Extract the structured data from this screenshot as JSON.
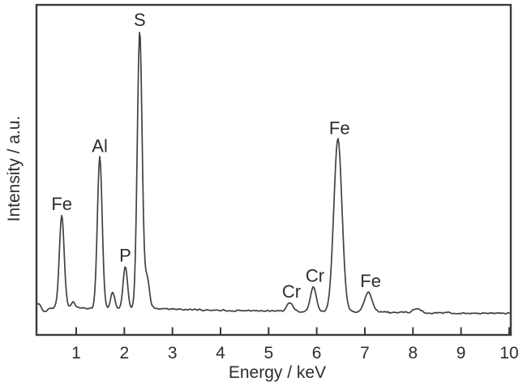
{
  "chart_data": {
    "type": "line",
    "title": "",
    "xlabel": "Energy / keV",
    "ylabel": "Intensity / a.u.",
    "x_ticks": [
      1,
      2,
      3,
      4,
      5,
      6,
      7,
      8,
      9,
      10
    ],
    "xlim": [
      0.17,
      10.05
    ],
    "ylim": [
      -0.02,
      1.18
    ],
    "grid": false,
    "legend": false,
    "line_color": "#3b453f",
    "axis_color": "#3a3a3a",
    "text_color": "#2d2d2d",
    "background_color": "#ffffff",
    "peaks": [
      {
        "label": "",
        "energy_keV": 0.22,
        "intensity_au": 0.018,
        "sigma_keV": 0.035
      },
      {
        "label": "",
        "energy_keV": 0.35,
        "intensity_au": -0.013,
        "sigma_keV": 0.05
      },
      {
        "label": "Fe",
        "energy_keV": 0.7,
        "intensity_au": 0.336,
        "sigma_keV": 0.05
      },
      {
        "label": "",
        "energy_keV": 0.94,
        "intensity_au": 0.023,
        "sigma_keV": 0.04
      },
      {
        "label": "Al",
        "energy_keV": 1.49,
        "intensity_au": 0.545,
        "sigma_keV": 0.05
      },
      {
        "label": "",
        "energy_keV": 1.76,
        "intensity_au": 0.058,
        "sigma_keV": 0.04
      },
      {
        "label": "P",
        "energy_keV": 2.02,
        "intensity_au": 0.151,
        "sigma_keV": 0.045
      },
      {
        "label": "S",
        "energy_keV": 2.32,
        "intensity_au": 1.0,
        "sigma_keV": 0.05
      },
      {
        "label": "",
        "energy_keV": 2.47,
        "intensity_au": 0.108,
        "sigma_keV": 0.05
      },
      {
        "label": "Cr",
        "energy_keV": 5.44,
        "intensity_au": 0.031,
        "sigma_keV": 0.06,
        "label_dx": 2
      },
      {
        "label": "Cr",
        "energy_keV": 5.93,
        "intensity_au": 0.089,
        "sigma_keV": 0.06,
        "label_dx": 2
      },
      {
        "label": "Fe",
        "energy_keV": 6.44,
        "intensity_au": 0.623,
        "sigma_keV": 0.085,
        "label_dx": 2
      },
      {
        "label": "Fe",
        "energy_keV": 7.07,
        "intensity_au": 0.072,
        "sigma_keV": 0.08,
        "label_dx": 3
      },
      {
        "label": "",
        "energy_keV": 8.08,
        "intensity_au": 0.012,
        "sigma_keV": 0.08
      }
    ],
    "baseline_au": [
      [
        0.17,
        0.0205
      ],
      [
        2.45,
        0.0205
      ],
      [
        4.23,
        0.0117
      ],
      [
        8.1,
        0.0044
      ],
      [
        10.05,
        0.0015
      ]
    ],
    "noise_amplitude_au": 0.002
  }
}
